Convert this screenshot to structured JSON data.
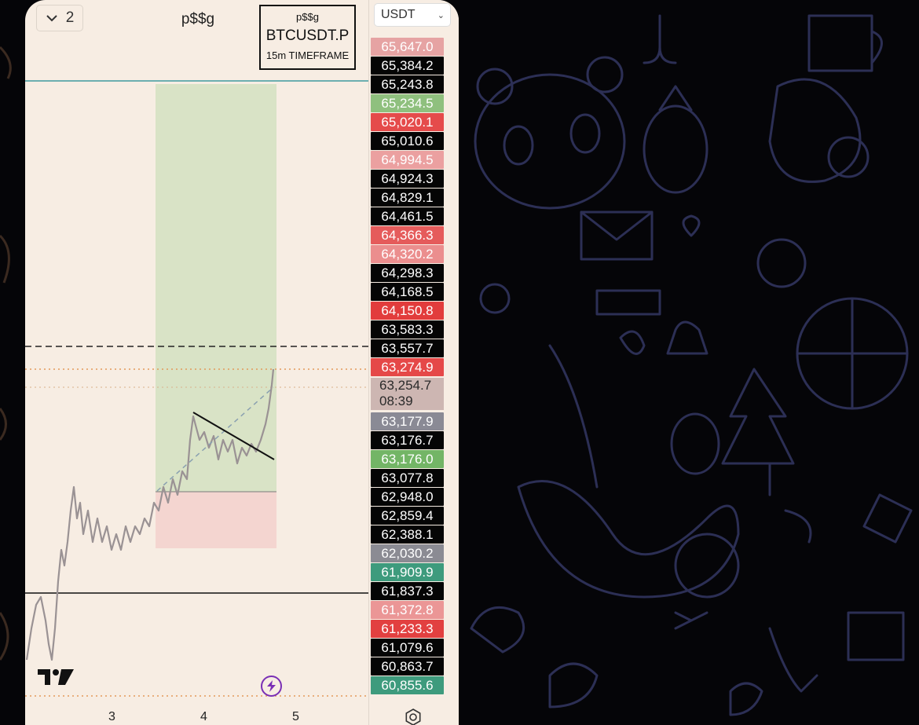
{
  "header": {
    "layout_count": "2",
    "chart_title": "p$$g"
  },
  "symbol_box": {
    "line1": "p$$g",
    "symbol": "BTCUSDT.P",
    "timeframe": "15m TIMEFRAME"
  },
  "price_scale": {
    "currency": "USDT",
    "current_price": "63,254.7",
    "countdown": "08:39",
    "labels": [
      {
        "text": "65,647.0",
        "color": "#e6a3a3"
      },
      {
        "text": "65,384.2",
        "color": "#050505"
      },
      {
        "text": "65,243.8",
        "color": "#050505"
      },
      {
        "text": "65,234.5",
        "color": "#8fc07e"
      },
      {
        "text": "65,020.1",
        "color": "#e54b4b"
      },
      {
        "text": "65,010.6",
        "color": "#050505"
      },
      {
        "text": "64,994.5",
        "color": "#eba0a0"
      },
      {
        "text": "64,924.3",
        "color": "#050505"
      },
      {
        "text": "64,829.1",
        "color": "#050505"
      },
      {
        "text": "64,461.5",
        "color": "#050505"
      },
      {
        "text": "64,366.3",
        "color": "#e55b5b"
      },
      {
        "text": "64,320.2",
        "color": "#eb8e8e"
      },
      {
        "text": "64,298.3",
        "color": "#050505"
      },
      {
        "text": "64,168.5",
        "color": "#050505"
      },
      {
        "text": "64,150.8",
        "color": "#e23c3c"
      },
      {
        "text": "63,583.3",
        "color": "#050505"
      },
      {
        "text": "63,557.7",
        "color": "#050505"
      },
      {
        "text": "63,274.9",
        "color": "#e54848"
      },
      {
        "text": "63,177.9",
        "color": "#8a8a95"
      },
      {
        "text": "63,176.7",
        "color": "#050505"
      },
      {
        "text": "63,176.0",
        "color": "#73b566"
      },
      {
        "text": "63,077.8",
        "color": "#050505"
      },
      {
        "text": "62,948.0",
        "color": "#050505"
      },
      {
        "text": "62,859.4",
        "color": "#050505"
      },
      {
        "text": "62,388.1",
        "color": "#050505"
      },
      {
        "text": "62,030.2",
        "color": "#8b8b93"
      },
      {
        "text": "61,909.9",
        "color": "#3e9b7d"
      },
      {
        "text": "61,837.3",
        "color": "#050505"
      },
      {
        "text": "61,372.8",
        "color": "#eb9696"
      },
      {
        "text": "61,233.3",
        "color": "#e24040"
      },
      {
        "text": "61,079.6",
        "color": "#050505"
      },
      {
        "text": "60,863.7",
        "color": "#050505"
      },
      {
        "text": "60,855.6",
        "color": "#3e9b7d"
      }
    ]
  },
  "time_axis": {
    "labels": [
      "3",
      "4",
      "5"
    ]
  },
  "colors": {
    "panel_bg": "#f7ede3",
    "target_zone": "#d9e3c6",
    "stop_zone": "#f4d5d0",
    "accent_purple": "#7a2fb5"
  }
}
